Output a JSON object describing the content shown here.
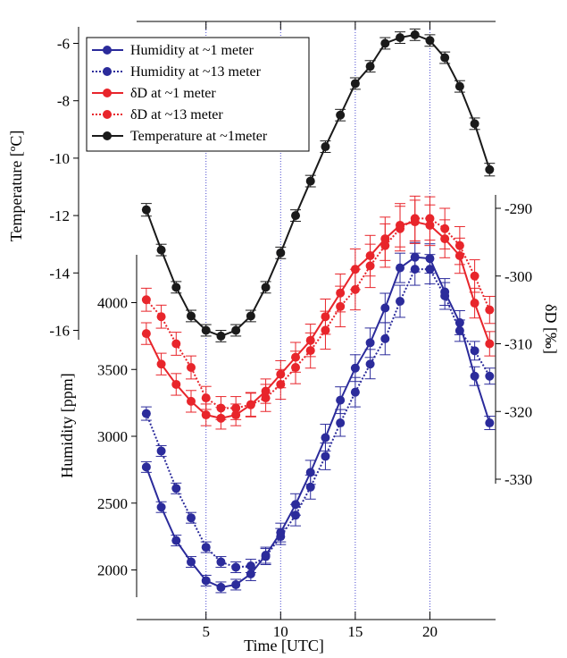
{
  "chart_data": {
    "type": "line",
    "x_axis": {
      "label": "Time [UTC]",
      "range": [
        0.35,
        24.4
      ],
      "ticks": [
        5,
        10,
        15,
        20
      ],
      "gridlines": [
        5,
        10,
        15,
        20
      ]
    },
    "y_axes": {
      "temperature": {
        "label": "Temperature [ºC]",
        "range": [
          -16.6,
          -5.4
        ],
        "ticks": [
          -16,
          -14,
          -12,
          -10,
          -8,
          -6
        ]
      },
      "humidity": {
        "label": "Humidity [ppm]",
        "range": [
          1630,
          4780
        ],
        "ticks": [
          2000,
          2500,
          3000,
          3500,
          4000
        ]
      },
      "deltaD": {
        "label": "δD [‰]",
        "range": [
          -346.5,
          -283.5
        ],
        "ticks": [
          -330,
          -320,
          -310,
          -300,
          -290
        ]
      }
    },
    "legend": {
      "position": "top-left",
      "entries": [
        "Humidity at ~1 meter",
        "Humidity at ~13 meter",
        "δD at ~1 meter",
        "δD at ~13 meter",
        "Temperature at ~1meter"
      ]
    },
    "x": [
      1,
      2,
      3,
      4,
      5,
      6,
      7,
      8,
      9,
      10,
      11,
      12,
      13,
      14,
      15,
      16,
      17,
      18,
      19,
      20,
      21,
      22,
      23,
      24
    ],
    "series": [
      {
        "name": "Humidity at ~1 meter",
        "axis": "humidity",
        "color": "#2b2b9b",
        "dash": "solid",
        "values": [
          2770,
          2470,
          2220,
          2060,
          1920,
          1870,
          1890,
          1970,
          2110,
          2280,
          2490,
          2730,
          2990,
          3270,
          3510,
          3700,
          3960,
          4260,
          4340,
          4330,
          4080,
          3850,
          3450,
          3100
        ],
        "errors": [
          40,
          40,
          40,
          40,
          40,
          40,
          40,
          50,
          60,
          70,
          80,
          90,
          100,
          100,
          100,
          110,
          110,
          110,
          110,
          110,
          100,
          90,
          70,
          50
        ]
      },
      {
        "name": "Humidity at ~13 meter",
        "axis": "humidity",
        "color": "#2b2b9b",
        "dash": "dotted",
        "values": [
          3170,
          2890,
          2610,
          2390,
          2170,
          2060,
          2020,
          2030,
          2100,
          2250,
          2410,
          2620,
          2850,
          3100,
          3330,
          3540,
          3730,
          4010,
          4250,
          4250,
          4050,
          3790,
          3640,
          3450
        ],
        "errors": [
          50,
          40,
          40,
          40,
          40,
          40,
          40,
          50,
          60,
          60,
          80,
          90,
          100,
          100,
          110,
          110,
          120,
          120,
          120,
          110,
          100,
          80,
          70,
          60
        ]
      },
      {
        "name": "δD at ~1 meter",
        "axis": "deltaD",
        "color": "#e8252b",
        "dash": "solid",
        "values": [
          -308.5,
          -313.0,
          -316.0,
          -318.5,
          -320.5,
          -321.0,
          -320.5,
          -319.0,
          -317.0,
          -314.5,
          -312.0,
          -309.5,
          -306.0,
          -302.5,
          -299.0,
          -297.0,
          -294.5,
          -292.5,
          -292.0,
          -292.5,
          -294.5,
          -297.0,
          -304.0,
          -310.0
        ],
        "errors": [
          1.6,
          1.6,
          1.6,
          1.6,
          1.6,
          1.6,
          1.6,
          1.7,
          1.8,
          2.0,
          2.2,
          2.4,
          2.6,
          2.8,
          3.0,
          3.0,
          3.2,
          3.2,
          3.2,
          3.0,
          2.8,
          2.6,
          2.2,
          1.8
        ]
      },
      {
        "name": "δD at ~13 meter",
        "axis": "deltaD",
        "color": "#e8252b",
        "dash": "dotted",
        "values": [
          -303.5,
          -306.0,
          -310.0,
          -313.5,
          -318.0,
          -319.5,
          -319.5,
          -319.0,
          -318.0,
          -316.0,
          -313.5,
          -311.0,
          -308.0,
          -304.5,
          -302.0,
          -298.5,
          -295.5,
          -293.0,
          -291.5,
          -291.5,
          -293.0,
          -295.5,
          -300.0,
          -305.0
        ],
        "errors": [
          1.7,
          1.7,
          1.7,
          1.7,
          1.7,
          1.7,
          1.7,
          1.8,
          2.0,
          2.2,
          2.4,
          2.6,
          2.8,
          3.0,
          3.0,
          3.2,
          3.2,
          3.3,
          3.3,
          3.2,
          3.0,
          2.8,
          2.4,
          2.0
        ]
      },
      {
        "name": "Temperature at ~1meter",
        "axis": "temperature",
        "color": "#1a1a1a",
        "dash": "solid",
        "values": [
          -11.8,
          -13.2,
          -14.5,
          -15.5,
          -16.0,
          -16.2,
          -16.0,
          -15.5,
          -14.5,
          -13.3,
          -12.0,
          -10.8,
          -9.6,
          -8.5,
          -7.4,
          -6.8,
          -6.0,
          -5.8,
          -5.7,
          -5.9,
          -6.5,
          -7.5,
          -8.8,
          -10.4
        ],
        "errors": [
          0.22,
          0.2,
          0.2,
          0.2,
          0.2,
          0.2,
          0.2,
          0.2,
          0.2,
          0.2,
          0.2,
          0.2,
          0.2,
          0.2,
          0.2,
          0.2,
          0.2,
          0.2,
          0.2,
          0.2,
          0.2,
          0.2,
          0.2,
          0.22
        ]
      }
    ]
  }
}
